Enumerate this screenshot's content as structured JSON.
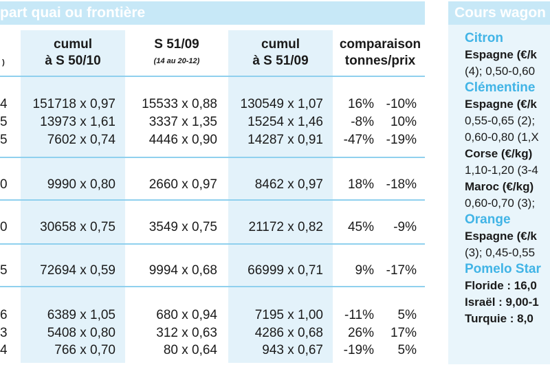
{
  "left_title": "part quai ou frontière",
  "right_title": "Cours wagon",
  "headers": {
    "col0_line2": ")",
    "cumul1_line1": "cumul",
    "cumul1_line2": "à S 50/10",
    "week_line1": "S 51/09",
    "week_line2": "(14 au 20-12)",
    "cumul2_line1": "cumul",
    "cumul2_line2": "à S 51/09",
    "comp_line1": "comparaison",
    "comp_line2": "tonnes/prix"
  },
  "groups": [
    {
      "rows": [
        {
          "c0": "4",
          "c1": "151718 x 0,97",
          "c2": "15533 x 0,88",
          "c3": "130549 x 1,07",
          "pct": "16%",
          "prix": "-10%"
        },
        {
          "c0": "5",
          "c1": "13973 x 1,61",
          "c2": "3337 x 1,35",
          "c3": "15254 x 1,46",
          "pct": "-8%",
          "prix": "10%"
        },
        {
          "c0": "5",
          "c1": "7602 x 0,74",
          "c2": "4446 x 0,90",
          "c3": "14287 x 0,91",
          "pct": "-47%",
          "prix": "-19%"
        }
      ]
    },
    {
      "rows": [
        {
          "c0": "0",
          "c1": "9990 x 0,80",
          "c2": "2660 x 0,97",
          "c3": "8462 x 0,97",
          "pct": "18%",
          "prix": "-18%"
        }
      ]
    },
    {
      "rows": [
        {
          "c0": "0",
          "c1": "30658 x 0,75",
          "c2": "3549 x 0,75",
          "c3": "21172 x 0,82",
          "pct": "45%",
          "prix": "-9%"
        }
      ]
    },
    {
      "rows": [
        {
          "c0": "5",
          "c1": "72694 x 0,59",
          "c2": "9994 x 0,68",
          "c3": "66999 x 0,71",
          "pct": "9%",
          "prix": "-17%"
        }
      ]
    },
    {
      "rows": [
        {
          "c0": "6",
          "c1": "6389 x 1,05",
          "c2": "680 x 0,94",
          "c3": "7195 x 1,00",
          "pct": "-11%",
          "prix": "5%"
        },
        {
          "c0": "3",
          "c1": "5408 x 0,80",
          "c2": "312 x 0,63",
          "c3": "4286 x 0,68",
          "pct": "26%",
          "prix": "17%"
        },
        {
          "c0": "4",
          "c1": "766 x 0,70",
          "c2": "80 x 0,64",
          "c3": "943 x 0,67",
          "pct": "-19%",
          "prix": "5%"
        }
      ]
    }
  ],
  "side": {
    "citron": "Citron",
    "citron_l1": "Espagne (€/k",
    "citron_l2": "(4); 0,50-0,60",
    "clementine": "Clémentine",
    "clem_l1": "Espagne (€/k",
    "clem_l2": "0,55-0,65 (2);",
    "clem_l3": "0,60-0,80 (1,X",
    "corse_l1": "Corse (€/kg)",
    "corse_l2": "1,10-1,20 (3-4",
    "maroc_l1": "Maroc (€/kg)",
    "maroc_l2": "0,60-0,70 (3);",
    "orange": "Orange",
    "orange_l1": "Espagne (€/k",
    "orange_l2": "(3); 0,45-0,55",
    "pomelo": "Pomelo Star",
    "floride": "Floride : 16,0",
    "israel": "Israël : 9,00-1",
    "turquie": "Turquie : 8,0"
  }
}
